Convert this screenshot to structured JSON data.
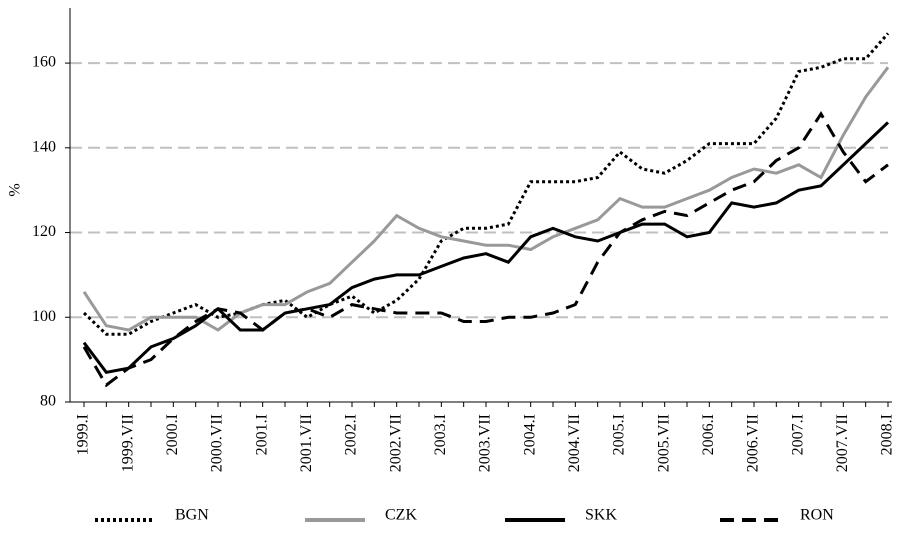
{
  "chart_data": {
    "type": "line",
    "y_label": "%",
    "categories": [
      "1999.I",
      null,
      "1999.VII",
      null,
      "2000.I",
      null,
      "2000.VII",
      null,
      "2001.I",
      null,
      "2001.VII",
      null,
      "2002.I",
      null,
      "2002.VII",
      null,
      "2003.I",
      null,
      "2003.VII",
      null,
      "2004.I",
      null,
      "2004.VII",
      null,
      "2005.I",
      null,
      "2005.VII",
      null,
      "2006.I",
      null,
      "2006.VII",
      null,
      "2007.I",
      null,
      "2007.VII",
      null,
      "2008.I"
    ],
    "series": [
      {
        "name": "BGN",
        "color": "#000000",
        "style": "dotted",
        "values": [
          101,
          96,
          96,
          99,
          101,
          103,
          100,
          101,
          103,
          104,
          100,
          103,
          105,
          101,
          104,
          109,
          118,
          121,
          121,
          122,
          132,
          132,
          132,
          133,
          139,
          135,
          134,
          137,
          141,
          141,
          141,
          147,
          158,
          159,
          161,
          161,
          167
        ]
      },
      {
        "name": "CZK",
        "color": "#999999",
        "style": "solid",
        "values": [
          106,
          98,
          97,
          100,
          100,
          100,
          97,
          101,
          103,
          103,
          106,
          108,
          113,
          118,
          124,
          121,
          119,
          118,
          117,
          117,
          116,
          119,
          121,
          123,
          128,
          126,
          126,
          128,
          130,
          133,
          135,
          134,
          136,
          133,
          143,
          152,
          159
        ]
      },
      {
        "name": "SKK",
        "color": "#000000",
        "style": "solid",
        "values": [
          94,
          87,
          88,
          93,
          95,
          98,
          102,
          97,
          97,
          101,
          102,
          103,
          107,
          109,
          110,
          110,
          112,
          114,
          115,
          113,
          119,
          121,
          119,
          118,
          120,
          122,
          122,
          119,
          120,
          127,
          126,
          127,
          130,
          131,
          136,
          141,
          146
        ]
      },
      {
        "name": "RON",
        "color": "#000000",
        "style": "dashed",
        "values": [
          93,
          84,
          88,
          90,
          95,
          99,
          102,
          101,
          97,
          101,
          102,
          100,
          103,
          102,
          101,
          101,
          101,
          99,
          99,
          100,
          100,
          101,
          103,
          113,
          120,
          123,
          125,
          124,
          127,
          130,
          132,
          137,
          140,
          148,
          139,
          132,
          136
        ]
      }
    ],
    "ylim": [
      80,
      173
    ],
    "yticks": [
      80,
      100,
      120,
      140,
      160
    ],
    "grid": true
  }
}
